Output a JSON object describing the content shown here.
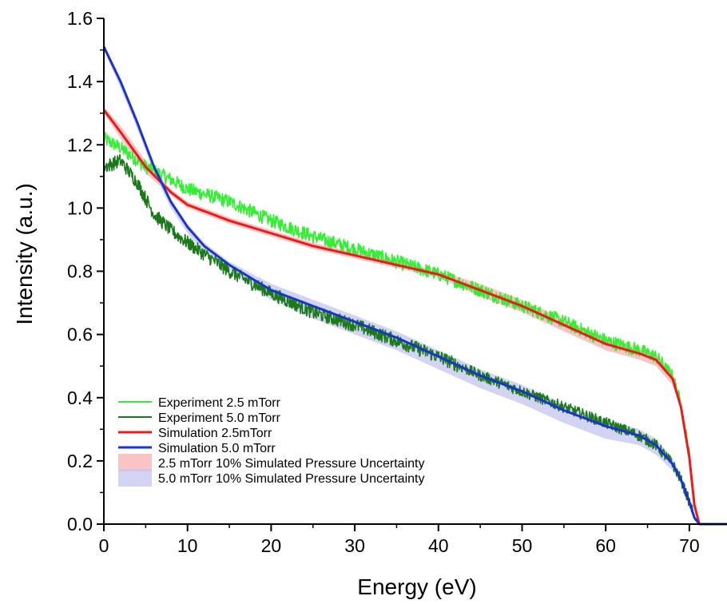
{
  "chart_data": {
    "type": "line",
    "title": "",
    "xlabel": "Energy (eV)",
    "ylabel": "Intensity (a.u.)",
    "xlim": [
      0,
      74.5
    ],
    "ylim": [
      0,
      1.6
    ],
    "xticks": [
      0,
      10,
      20,
      30,
      40,
      50,
      60,
      70
    ],
    "xtick_labels": [
      "0",
      "10",
      "20",
      "30",
      "40",
      "50",
      "60",
      "70"
    ],
    "yticks": [
      0.0,
      0.2,
      0.4,
      0.6,
      0.8,
      1.0,
      1.2,
      1.4,
      1.6
    ],
    "ytick_labels": [
      "0.0",
      "0.2",
      "0.4",
      "0.6",
      "0.8",
      "1.0",
      "1.2",
      "1.4",
      "1.6"
    ],
    "grid": false,
    "legend_position": "bottom-left",
    "series": [
      {
        "name": "Experiment 2.5 mTorr",
        "kind": "line",
        "noisy": true,
        "color": "#33ee33",
        "x": [
          0,
          2,
          5,
          8,
          10,
          15,
          20,
          25,
          30,
          35,
          40,
          45,
          50,
          55,
          60,
          64,
          66,
          68,
          69,
          70,
          70.6,
          71.2,
          72,
          74.5
        ],
        "y": [
          1.22,
          1.19,
          1.13,
          1.09,
          1.06,
          1.02,
          0.96,
          0.91,
          0.87,
          0.83,
          0.79,
          0.74,
          0.69,
          0.64,
          0.58,
          0.55,
          0.53,
          0.47,
          0.38,
          0.22,
          0.06,
          0.0,
          0.0,
          0.0
        ]
      },
      {
        "name": "Experiment 5.0 mTorr",
        "kind": "line",
        "noisy": true,
        "color": "#1a7a1a",
        "x": [
          0,
          2,
          4,
          6,
          8,
          10,
          15,
          20,
          25,
          30,
          35,
          40,
          45,
          50,
          55,
          60,
          64,
          66,
          68,
          69,
          70,
          70.6,
          71.2,
          72,
          74.5
        ],
        "y": [
          1.13,
          1.15,
          1.08,
          0.98,
          0.93,
          0.89,
          0.8,
          0.73,
          0.67,
          0.63,
          0.58,
          0.53,
          0.47,
          0.42,
          0.37,
          0.32,
          0.28,
          0.25,
          0.19,
          0.14,
          0.07,
          0.02,
          0.0,
          0.0,
          0.0
        ]
      },
      {
        "name": "Simulation 2.5mTorr",
        "kind": "line",
        "color": "#ee1a1a",
        "x": [
          0,
          2,
          5,
          8,
          10,
          15,
          20,
          25,
          30,
          35,
          40,
          45,
          50,
          55,
          60,
          64,
          66,
          68,
          69,
          70,
          70.6,
          71.2,
          72,
          74.5
        ],
        "y": [
          1.31,
          1.24,
          1.13,
          1.05,
          1.01,
          0.96,
          0.92,
          0.88,
          0.85,
          0.82,
          0.79,
          0.74,
          0.69,
          0.63,
          0.57,
          0.54,
          0.52,
          0.46,
          0.37,
          0.21,
          0.06,
          0.0,
          0.0,
          0.0
        ]
      },
      {
        "name": "Simulation 5.0 mTorr",
        "kind": "line",
        "color": "#1a33cc",
        "x": [
          0,
          2,
          4,
          6,
          8,
          10,
          12,
          15,
          20,
          25,
          30,
          35,
          40,
          45,
          50,
          55,
          60,
          64,
          66,
          68,
          69,
          70,
          70.6,
          71.2,
          72,
          74.5
        ],
        "y": [
          1.51,
          1.4,
          1.27,
          1.13,
          1.02,
          0.94,
          0.88,
          0.82,
          0.74,
          0.69,
          0.64,
          0.59,
          0.53,
          0.47,
          0.42,
          0.36,
          0.31,
          0.28,
          0.25,
          0.19,
          0.14,
          0.07,
          0.02,
          0.0,
          0.0,
          0.0
        ]
      },
      {
        "name": "2.5 mTorr 10% Simulated Pressure Uncertainty",
        "kind": "band",
        "color": "#f5b0b0",
        "x": [
          0,
          2,
          5,
          8,
          10,
          15,
          20,
          25,
          30,
          35,
          40,
          45,
          50,
          55,
          60,
          64,
          66,
          68,
          69,
          70,
          70.6,
          71.2,
          72,
          74.5
        ],
        "upper": [
          1.32,
          1.26,
          1.15,
          1.06,
          1.02,
          0.97,
          0.93,
          0.89,
          0.86,
          0.83,
          0.8,
          0.76,
          0.71,
          0.65,
          0.59,
          0.56,
          0.54,
          0.48,
          0.38,
          0.22,
          0.07,
          0.0,
          0.0,
          0.0
        ],
        "lower": [
          1.3,
          1.22,
          1.11,
          1.04,
          1.0,
          0.95,
          0.91,
          0.87,
          0.84,
          0.81,
          0.78,
          0.72,
          0.67,
          0.61,
          0.55,
          0.52,
          0.5,
          0.44,
          0.36,
          0.2,
          0.05,
          0.0,
          0.0,
          0.0
        ]
      },
      {
        "name": "5.0 mTorr 10% Simulated Pressure Uncertainty",
        "kind": "band",
        "color": "#c4c4f0",
        "x": [
          0,
          2,
          4,
          6,
          8,
          10,
          12,
          15,
          20,
          25,
          30,
          35,
          40,
          45,
          50,
          55,
          60,
          64,
          66,
          68,
          69,
          70,
          70.6,
          71.2,
          72,
          74.5
        ],
        "upper": [
          1.52,
          1.41,
          1.28,
          1.14,
          1.03,
          0.95,
          0.89,
          0.83,
          0.76,
          0.71,
          0.66,
          0.61,
          0.55,
          0.49,
          0.44,
          0.38,
          0.33,
          0.3,
          0.27,
          0.21,
          0.15,
          0.08,
          0.03,
          0.0,
          0.0,
          0.0
        ],
        "lower": [
          1.5,
          1.38,
          1.25,
          1.11,
          1.0,
          0.92,
          0.86,
          0.8,
          0.71,
          0.65,
          0.6,
          0.55,
          0.49,
          0.43,
          0.38,
          0.32,
          0.27,
          0.25,
          0.22,
          0.17,
          0.13,
          0.06,
          0.01,
          0.0,
          0.0,
          0.0
        ]
      }
    ]
  }
}
